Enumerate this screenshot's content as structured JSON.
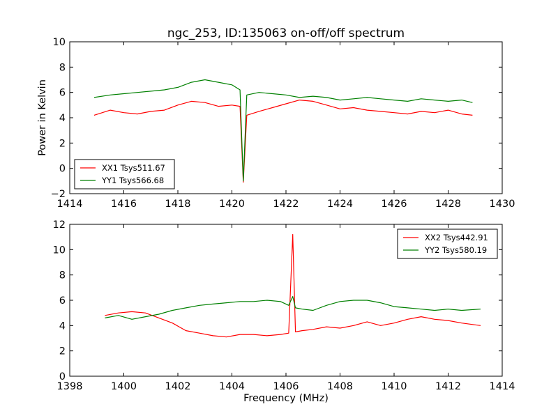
{
  "chart_data": [
    {
      "type": "line",
      "title": "ngc_253, ID:135063 on-off/off spectrum",
      "xlabel": "",
      "ylabel": "Power in Kelvin",
      "xlim": [
        1414,
        1430
      ],
      "ylim": [
        -2,
        10
      ],
      "xticks": [
        "1414",
        "1416",
        "1418",
        "1420",
        "1422",
        "1424",
        "1426",
        "1428",
        "1430"
      ],
      "yticks": [
        "−2",
        "0",
        "2",
        "4",
        "6",
        "8",
        "10"
      ],
      "legend_position": "lower-left",
      "grid": false,
      "series": [
        {
          "name": "XX1 Tsys511.67",
          "color": "#ff0000",
          "x": [
            1414.9,
            1415.5,
            1416.0,
            1416.5,
            1417.0,
            1417.5,
            1418.0,
            1418.5,
            1419.0,
            1419.5,
            1420.0,
            1420.3,
            1420.42,
            1420.55,
            1421.0,
            1421.5,
            1422.0,
            1422.5,
            1423.0,
            1423.5,
            1424.0,
            1424.5,
            1425.0,
            1425.5,
            1426.0,
            1426.5,
            1427.0,
            1427.5,
            1428.0,
            1428.5,
            1428.9
          ],
          "y": [
            4.2,
            4.6,
            4.4,
            4.3,
            4.5,
            4.6,
            5.0,
            5.3,
            5.2,
            4.9,
            5.0,
            4.9,
            -1.1,
            4.2,
            4.5,
            4.8,
            5.1,
            5.4,
            5.3,
            5.0,
            4.7,
            4.8,
            4.6,
            4.5,
            4.4,
            4.3,
            4.5,
            4.4,
            4.6,
            4.3,
            4.2
          ]
        },
        {
          "name": "YY1 Tsys566.68",
          "color": "#008000",
          "x": [
            1414.9,
            1415.5,
            1416.0,
            1416.5,
            1417.0,
            1417.5,
            1418.0,
            1418.5,
            1419.0,
            1419.5,
            1420.0,
            1420.3,
            1420.42,
            1420.55,
            1421.0,
            1421.5,
            1422.0,
            1422.5,
            1423.0,
            1423.5,
            1424.0,
            1424.5,
            1425.0,
            1425.5,
            1426.0,
            1426.5,
            1427.0,
            1427.5,
            1428.0,
            1428.5,
            1428.9
          ],
          "y": [
            5.6,
            5.8,
            5.9,
            6.0,
            6.1,
            6.2,
            6.4,
            6.8,
            7.0,
            6.8,
            6.6,
            6.2,
            -1.0,
            5.8,
            6.0,
            5.9,
            5.8,
            5.6,
            5.7,
            5.6,
            5.4,
            5.5,
            5.6,
            5.5,
            5.4,
            5.3,
            5.5,
            5.4,
            5.3,
            5.4,
            5.2
          ]
        }
      ]
    },
    {
      "type": "line",
      "title": "",
      "xlabel": "Frequency (MHz)",
      "ylabel": "",
      "xlim": [
        1398,
        1414
      ],
      "ylim": [
        0,
        12
      ],
      "xticks": [
        "1398",
        "1400",
        "1402",
        "1404",
        "1406",
        "1408",
        "1410",
        "1412",
        "1414"
      ],
      "yticks": [
        "0",
        "2",
        "4",
        "6",
        "8",
        "10",
        "12"
      ],
      "legend_position": "top-right",
      "grid": false,
      "series": [
        {
          "name": "XX2 Tsys442.91",
          "color": "#ff0000",
          "x": [
            1399.3,
            1399.8,
            1400.3,
            1400.8,
            1401.3,
            1401.8,
            1402.3,
            1402.8,
            1403.3,
            1403.8,
            1404.3,
            1404.8,
            1405.3,
            1405.8,
            1406.1,
            1406.25,
            1406.35,
            1406.6,
            1407.0,
            1407.5,
            1408.0,
            1408.5,
            1409.0,
            1409.5,
            1410.0,
            1410.5,
            1411.0,
            1411.5,
            1412.0,
            1412.5,
            1413.2
          ],
          "y": [
            4.8,
            5.0,
            5.1,
            5.0,
            4.6,
            4.2,
            3.6,
            3.4,
            3.2,
            3.1,
            3.3,
            3.3,
            3.2,
            3.3,
            3.4,
            11.2,
            3.5,
            3.6,
            3.7,
            3.9,
            3.8,
            4.0,
            4.3,
            4.0,
            4.2,
            4.5,
            4.7,
            4.5,
            4.4,
            4.2,
            4.0
          ]
        },
        {
          "name": "YY2 Tsys580.19",
          "color": "#008000",
          "x": [
            1399.3,
            1399.8,
            1400.3,
            1400.8,
            1401.3,
            1401.8,
            1402.3,
            1402.8,
            1403.3,
            1403.8,
            1404.3,
            1404.8,
            1405.3,
            1405.8,
            1406.1,
            1406.25,
            1406.35,
            1406.6,
            1407.0,
            1407.5,
            1408.0,
            1408.5,
            1409.0,
            1409.5,
            1410.0,
            1410.5,
            1411.0,
            1411.5,
            1412.0,
            1412.5,
            1413.2
          ],
          "y": [
            4.6,
            4.8,
            4.5,
            4.7,
            4.9,
            5.2,
            5.4,
            5.6,
            5.7,
            5.8,
            5.9,
            5.9,
            6.0,
            5.9,
            5.6,
            6.3,
            5.4,
            5.3,
            5.2,
            5.6,
            5.9,
            6.0,
            6.0,
            5.8,
            5.5,
            5.4,
            5.3,
            5.2,
            5.3,
            5.2,
            5.3
          ]
        }
      ]
    }
  ]
}
